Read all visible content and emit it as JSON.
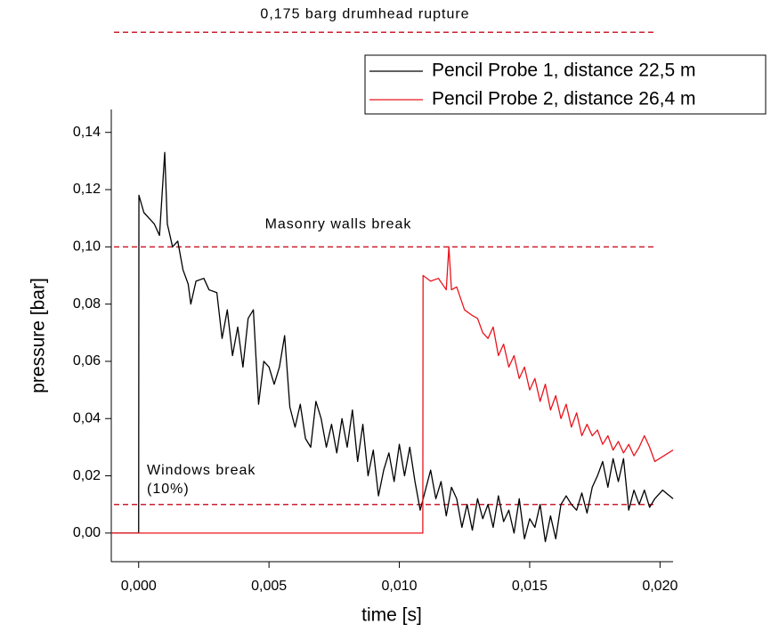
{
  "chart_data": {
    "type": "line",
    "xlabel": "time [s]",
    "ylabel": "pressure [bar]",
    "xlim": [
      -0.00105,
      0.0205
    ],
    "ylim": [
      -0.01,
      0.148
    ],
    "xticks": [
      {
        "value": 0,
        "label": "0,000"
      },
      {
        "value": 0.005,
        "label": "0,005"
      },
      {
        "value": 0.01,
        "label": "0,010"
      },
      {
        "value": 0.015,
        "label": "0,015"
      },
      {
        "value": 0.02,
        "label": "0,020"
      }
    ],
    "yticks": [
      {
        "value": 0,
        "label": "0,00"
      },
      {
        "value": 0.02,
        "label": "0,02"
      },
      {
        "value": 0.04,
        "label": "0,04"
      },
      {
        "value": 0.06,
        "label": "0,06"
      },
      {
        "value": 0.08,
        "label": "0,08"
      },
      {
        "value": 0.1,
        "label": "0,10"
      },
      {
        "value": 0.12,
        "label": "0,12"
      },
      {
        "value": 0.14,
        "label": "0,14"
      }
    ],
    "grid": false,
    "legend": "upper right",
    "reference_lines": [
      {
        "value": 0.175,
        "color": "#cc1f2e",
        "label_lines": [
          "0,175 barg drumhead rupture"
        ]
      },
      {
        "value": 0.1,
        "color": "#cc1f2e",
        "label_lines": [
          "Masonry walls break"
        ]
      },
      {
        "value": 0.01,
        "color": "#cc1f2e",
        "label_lines": [
          "Windows break",
          "(10%)"
        ]
      }
    ],
    "series": [
      {
        "name": "Pencil Probe 1, distance 22,5 m",
        "color": "#000000",
        "x": [
          -0.00105,
          0,
          1e-05,
          0.0002,
          0.0004,
          0.0006,
          0.0008,
          0.001,
          0.0011,
          0.0013,
          0.0015,
          0.0017,
          0.0019,
          0.002,
          0.0022,
          0.0025,
          0.0027,
          0.003,
          0.0032,
          0.0034,
          0.0036,
          0.0038,
          0.004,
          0.0042,
          0.0044,
          0.0046,
          0.0048,
          0.005,
          0.0052,
          0.0054,
          0.0056,
          0.0058,
          0.006,
          0.0062,
          0.0064,
          0.0066,
          0.0068,
          0.007,
          0.0072,
          0.0074,
          0.0076,
          0.0078,
          0.008,
          0.0082,
          0.0084,
          0.0086,
          0.0088,
          0.009,
          0.0092,
          0.0094,
          0.0096,
          0.0098,
          0.01,
          0.0102,
          0.0104,
          0.0106,
          0.0108,
          0.011,
          0.0112,
          0.0114,
          0.0116,
          0.0118,
          0.012,
          0.0122,
          0.0124,
          0.0126,
          0.0128,
          0.013,
          0.0132,
          0.0134,
          0.0136,
          0.0138,
          0.014,
          0.0142,
          0.0144,
          0.0146,
          0.0148,
          0.015,
          0.0152,
          0.0154,
          0.0156,
          0.0158,
          0.016,
          0.0162,
          0.0164,
          0.0166,
          0.0168,
          0.017,
          0.0172,
          0.0174,
          0.0176,
          0.0178,
          0.018,
          0.0182,
          0.0184,
          0.0186,
          0.0188,
          0.019,
          0.0192,
          0.0194,
          0.0196,
          0.0198,
          0.0201,
          0.0205
        ],
        "values": [
          0,
          0,
          0.118,
          0.112,
          0.11,
          0.108,
          0.104,
          0.133,
          0.108,
          0.1,
          0.102,
          0.092,
          0.087,
          0.08,
          0.088,
          0.089,
          0.085,
          0.084,
          0.068,
          0.078,
          0.062,
          0.072,
          0.058,
          0.075,
          0.078,
          0.045,
          0.06,
          0.058,
          0.052,
          0.058,
          0.069,
          0.044,
          0.037,
          0.045,
          0.033,
          0.03,
          0.046,
          0.04,
          0.03,
          0.038,
          0.028,
          0.04,
          0.03,
          0.043,
          0.025,
          0.038,
          0.02,
          0.029,
          0.013,
          0.022,
          0.028,
          0.018,
          0.031,
          0.02,
          0.03,
          0.018,
          0.008,
          0.015,
          0.022,
          0.012,
          0.018,
          0.006,
          0.016,
          0.012,
          0.002,
          0.01,
          0.001,
          0.012,
          0.005,
          0.01,
          0.002,
          0.013,
          0.004,
          0.008,
          0,
          0.012,
          -0.002,
          0.005,
          0.002,
          0.01,
          -0.003,
          0.006,
          -0.002,
          0.01,
          0.013,
          0.01,
          0.008,
          0.014,
          0.007,
          0.016,
          0.02,
          0.025,
          0.016,
          0.026,
          0.018,
          0.026,
          0.008,
          0.015,
          0.01,
          0.015,
          0.009,
          0.012,
          0.015,
          0.012
        ]
      },
      {
        "name": "Pencil Probe 2, distance 26,4 m",
        "color": "#e8141c",
        "x": [
          -0.00105,
          0.0109,
          0.01091,
          0.0112,
          0.0115,
          0.0118,
          0.0119,
          0.012,
          0.0122,
          0.0125,
          0.0128,
          0.013,
          0.0132,
          0.0134,
          0.0136,
          0.0138,
          0.014,
          0.0142,
          0.0144,
          0.0146,
          0.0148,
          0.015,
          0.0152,
          0.0154,
          0.0156,
          0.0158,
          0.016,
          0.0162,
          0.0164,
          0.0166,
          0.0168,
          0.017,
          0.0172,
          0.0174,
          0.0176,
          0.0178,
          0.018,
          0.0182,
          0.0184,
          0.0186,
          0.0188,
          0.019,
          0.0192,
          0.0194,
          0.0196,
          0.0198,
          0.0205
        ],
        "values": [
          0,
          0,
          0.09,
          0.088,
          0.089,
          0.085,
          0.1,
          0.085,
          0.086,
          0.078,
          0.076,
          0.075,
          0.07,
          0.068,
          0.072,
          0.062,
          0.066,
          0.058,
          0.062,
          0.054,
          0.058,
          0.05,
          0.054,
          0.046,
          0.052,
          0.043,
          0.048,
          0.04,
          0.045,
          0.037,
          0.042,
          0.034,
          0.038,
          0.034,
          0.036,
          0.031,
          0.034,
          0.029,
          0.032,
          0.028,
          0.031,
          0.027,
          0.03,
          0.034,
          0.03,
          0.025,
          0.029
        ]
      }
    ]
  }
}
